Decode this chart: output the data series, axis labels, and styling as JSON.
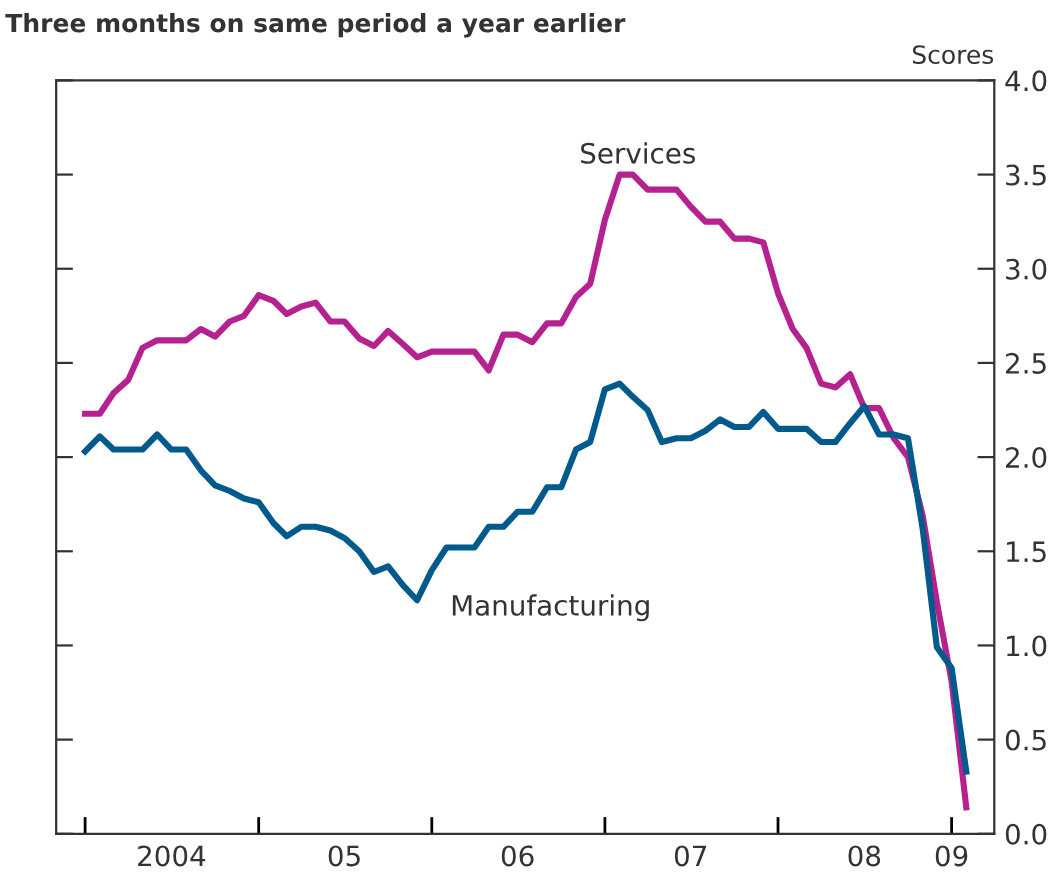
{
  "chart_data": {
    "type": "line",
    "title": "Three months on same period a year earlier",
    "ylabel": "Scores",
    "x": [
      "2004-01",
      "2004-02",
      "2004-03",
      "2004-04",
      "2004-05",
      "2004-06",
      "2004-07",
      "2004-08",
      "2004-09",
      "2004-10",
      "2004-11",
      "2004-12",
      "2005-01",
      "2005-02",
      "2005-03",
      "2005-04",
      "2005-05",
      "2005-06",
      "2005-07",
      "2005-08",
      "2005-09",
      "2005-10",
      "2005-11",
      "2005-12",
      "2006-01",
      "2006-02",
      "2006-03",
      "2006-04",
      "2006-05",
      "2006-06",
      "2006-07",
      "2006-08",
      "2006-09",
      "2006-10",
      "2006-11",
      "2006-12",
      "2007-01",
      "2007-02",
      "2007-03",
      "2007-04",
      "2007-05",
      "2007-06",
      "2007-07",
      "2007-08",
      "2007-09",
      "2007-10",
      "2007-11",
      "2007-12",
      "2008-01",
      "2008-02",
      "2008-03",
      "2008-04",
      "2008-05",
      "2008-06",
      "2008-07",
      "2008-08",
      "2008-09",
      "2008-10",
      "2008-11",
      "2008-12",
      "2009-01",
      "2009-02"
    ],
    "series": [
      {
        "name": "Services",
        "color": "#b5218f",
        "values": [
          2.23,
          2.23,
          2.34,
          2.41,
          2.58,
          2.62,
          2.62,
          2.62,
          2.68,
          2.64,
          2.72,
          2.75,
          2.86,
          2.83,
          2.76,
          2.8,
          2.82,
          2.72,
          2.72,
          2.63,
          2.59,
          2.67,
          2.6,
          2.53,
          2.56,
          2.56,
          2.56,
          2.56,
          2.46,
          2.65,
          2.65,
          2.61,
          2.71,
          2.71,
          2.85,
          2.92,
          3.26,
          3.5,
          3.5,
          3.42,
          3.42,
          3.42,
          3.33,
          3.25,
          3.25,
          3.16,
          3.16,
          3.14,
          2.87,
          2.68,
          2.58,
          2.39,
          2.37,
          2.44,
          2.26,
          2.26,
          2.1,
          2.0,
          1.69,
          1.23,
          0.81,
          0.14
        ]
      },
      {
        "name": "Manufacturing",
        "color": "#005a8c",
        "values": [
          2.03,
          2.11,
          2.04,
          2.04,
          2.04,
          2.12,
          2.04,
          2.04,
          1.93,
          1.85,
          1.82,
          1.78,
          1.76,
          1.65,
          1.58,
          1.63,
          1.63,
          1.61,
          1.57,
          1.5,
          1.39,
          1.42,
          1.32,
          1.24,
          1.4,
          1.52,
          1.52,
          1.52,
          1.63,
          1.63,
          1.71,
          1.71,
          1.84,
          1.84,
          2.04,
          2.08,
          2.36,
          2.39,
          2.32,
          2.25,
          2.08,
          2.1,
          2.1,
          2.14,
          2.2,
          2.16,
          2.16,
          2.24,
          2.15,
          2.15,
          2.15,
          2.08,
          2.08,
          2.18,
          2.27,
          2.12,
          2.12,
          2.1,
          1.62,
          0.99,
          0.88,
          0.33
        ]
      }
    ],
    "xlim": [
      "2003-11",
      "2009-04"
    ],
    "xticks": [
      {
        "value": "2004-01",
        "label": null
      },
      {
        "value": "2005-01",
        "label": null
      },
      {
        "value": "2006-01",
        "label": null
      },
      {
        "value": "2007-01",
        "label": null
      },
      {
        "value": "2008-01",
        "label": null
      },
      {
        "value": "2009-01",
        "label": null
      },
      {
        "value": "2004-07",
        "label": "2004"
      },
      {
        "value": "2005-07",
        "label": "05"
      },
      {
        "value": "2006-07",
        "label": "06"
      },
      {
        "value": "2007-07",
        "label": "07"
      },
      {
        "value": "2008-07",
        "label": "08"
      },
      {
        "value": "2009-01",
        "label": "09"
      }
    ],
    "ylim": [
      0,
      4
    ],
    "yticks": [
      {
        "value": 0,
        "label": "0.0"
      },
      {
        "value": 0.5,
        "label": "0.5"
      },
      {
        "value": 1,
        "label": "1.0"
      },
      {
        "value": 1.5,
        "label": "1.5"
      },
      {
        "value": 2,
        "label": "2.0"
      },
      {
        "value": 2.5,
        "label": "2.5"
      },
      {
        "value": 3,
        "label": "3.0"
      },
      {
        "value": 3.5,
        "label": "3.5"
      },
      {
        "value": 4,
        "label": "4.0"
      }
    ],
    "grid": false,
    "legend": false,
    "line_style": "solid"
  }
}
